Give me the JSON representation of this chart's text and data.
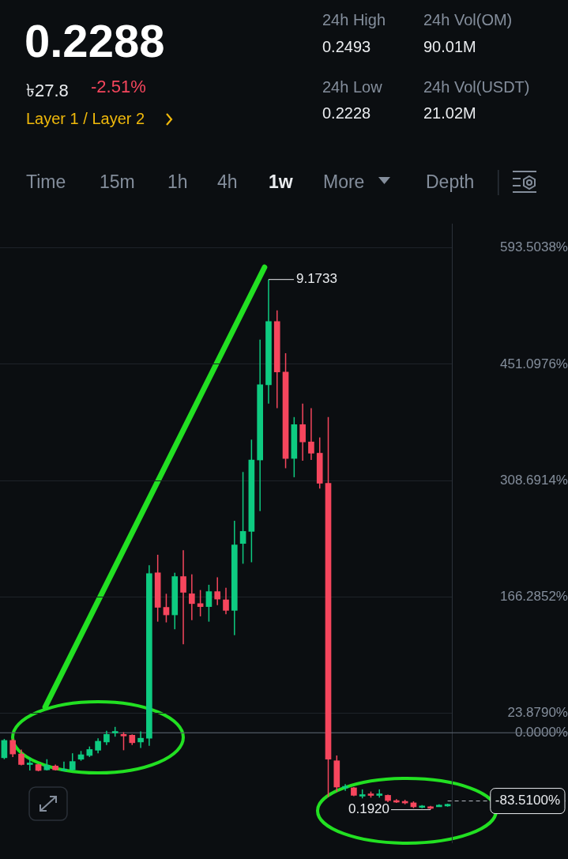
{
  "chart_data": {
    "type": "candlestick",
    "title": "0.2288",
    "annotations": [
      "৳27.8",
      "-2.51%",
      "Layer 1 / Layer 2",
      "24h High",
      "0.2493",
      "24h Low",
      "0.2228",
      "24h Vol(OM)",
      "90.01M",
      "24h Vol(USDT)",
      "21.02M",
      "Time",
      "15m",
      "1h",
      "4h",
      "1w",
      "More",
      "Depth",
      "9.1733",
      "0.1920"
    ],
    "categories": [
      null,
      null,
      null,
      null,
      null,
      null,
      null,
      null,
      null,
      null,
      null,
      null,
      null,
      null,
      null,
      null,
      null,
      null,
      null,
      null,
      null,
      null,
      null,
      null,
      null,
      null,
      null,
      null,
      null,
      null,
      null,
      null,
      null,
      null,
      null,
      null,
      null,
      null,
      null,
      null,
      null,
      null,
      null,
      null,
      null,
      null,
      null,
      null,
      null,
      null,
      null,
      null,
      null
    ],
    "ohlc": [
      [
        -30.6,
        -7.6,
        -32.4,
        -9.4
      ],
      [
        -9.4,
        -7.6,
        -29.7,
        -26.0
      ],
      [
        -26.0,
        -20.5,
        -39.8,
        -38.9
      ],
      [
        -38.9,
        -30.6,
        -46.2,
        -37.0
      ],
      [
        -38.9,
        -38.0,
        -47.2,
        -46.2
      ],
      [
        -45.4,
        -32.4,
        -46.2,
        -39.8
      ],
      [
        -40.7,
        -38.9,
        -46.2,
        -45.4
      ],
      [
        -45.4,
        -35.2,
        -46.2,
        -44.4
      ],
      [
        -45.4,
        -25.1,
        -46.2,
        -35.2
      ],
      [
        -32.4,
        -22.3,
        -34.3,
        -26.9
      ],
      [
        -27.8,
        -16.8,
        -29.7,
        -20.5
      ],
      [
        -21.4,
        -6.7,
        -25.1,
        -10.4
      ],
      [
        -11.3,
        2.5,
        -15.0,
        -2.0
      ],
      [
        -0.3,
        7.2,
        -4.8,
        1.6
      ],
      [
        -2.0,
        0.7,
        -21.4,
        -3.0
      ],
      [
        -3.0,
        -2.0,
        -15.0,
        -12.2
      ],
      [
        -11.3,
        1.6,
        -18.7,
        -6.7
      ],
      [
        -6.7,
        205.0,
        -15.9,
        194.9
      ],
      [
        195.8,
        217.9,
        136.0,
        153.5
      ],
      [
        153.5,
        170.1,
        135.1,
        144.3
      ],
      [
        144.3,
        195.8,
        126.8,
        191.2
      ],
      [
        191.2,
        223.5,
        108.4,
        171.9
      ],
      [
        170.1,
        194.0,
        137.9,
        158.1
      ],
      [
        158.1,
        174.7,
        142.5,
        154.4
      ],
      [
        154.4,
        181.1,
        136.0,
        172.8
      ],
      [
        172.8,
        190.3,
        156.3,
        163.6
      ],
      [
        162.7,
        177.4,
        145.2,
        149.8
      ],
      [
        149.8,
        259.4,
        119.5,
        229.9
      ],
      [
        231.7,
        319.2,
        206.9,
        246.5
      ],
      [
        246.5,
        358.8,
        208.7,
        333.9
      ],
      [
        333.9,
        481.2,
        271.3,
        426.0
      ],
      [
        426.0,
        554.8,
        403.0,
        503.3
      ],
      [
        503.3,
        517.1,
        397.4,
        441.6
      ],
      [
        441.6,
        464.6,
        323.8,
        335.8
      ],
      [
        335.8,
        386.4,
        312.8,
        377.2
      ],
      [
        377.2,
        403.0,
        333.0,
        356.0
      ],
      [
        356.0,
        397.4,
        333.9,
        342.2
      ],
      [
        342.2,
        361.5,
        298.9,
        305.4
      ],
      [
        305.4,
        386.4,
        -78.5,
        -32.4
      ],
      [
        -34.3,
        -27.8,
        -72.0,
        -66.5
      ],
      [
        -67.4,
        -62.8,
        -71.1,
        -65.6
      ],
      [
        -67.4,
        -66.5,
        -77.6,
        -76.6
      ],
      [
        -77.6,
        -69.3,
        -80.3,
        -75.7
      ],
      [
        -74.8,
        -72.0,
        -79.4,
        -76.6
      ],
      [
        -76.6,
        -69.3,
        -79.4,
        -74.8
      ],
      [
        -76.6,
        -75.7,
        -84.9,
        -83.0
      ],
      [
        -83.0,
        -81.2,
        -85.8,
        -84.9
      ],
      [
        -84.0,
        -82.1,
        -87.6,
        -85.8
      ],
      [
        -85.8,
        -84.0,
        -92.3,
        -90.5
      ],
      [
        -91.3,
        -88.6,
        -92.3,
        -89.5
      ],
      [
        -90.5,
        -89.5,
        -94.2,
        -91.3
      ],
      [
        -89.5,
        -87.6,
        -90.5,
        -88.6
      ],
      [
        -89.5,
        -86.8,
        -90.5,
        -87.6
      ]
    ],
    "colors": [
      "#0ecb81",
      "#f6465d",
      "#f6465d",
      "#0ecb81",
      "#f6465d",
      "#0ecb81",
      "#f6465d",
      "#0ecb81",
      "#0ecb81",
      "#0ecb81",
      "#0ecb81",
      "#0ecb81",
      "#0ecb81",
      "#0ecb81",
      "#f6465d",
      "#f6465d",
      "#0ecb81",
      "#0ecb81",
      "#f6465d",
      "#f6465d",
      "#0ecb81",
      "#f6465d",
      "#f6465d",
      "#f6465d",
      "#0ecb81",
      "#f6465d",
      "#f6465d",
      "#0ecb81",
      "#0ecb81",
      "#0ecb81",
      "#0ecb81",
      "#0ecb81",
      "#f6465d",
      "#f6465d",
      "#0ecb81",
      "#f6465d",
      "#f6465d",
      "#f6465d",
      "#f6465d",
      "#f6465d",
      "#0ecb81",
      "#f6465d",
      "#0ecb81",
      "#f6465d",
      "#0ecb81",
      "#f6465d",
      "#f6465d",
      "#f6465d",
      "#f6465d",
      "#0ecb81",
      "#f6465d",
      "#0ecb81",
      "#0ecb81"
    ],
    "ylim": [
      -135,
      623
    ],
    "yticks": [
      {
        "value": 593.5038,
        "label": "593.5038%"
      },
      {
        "value": 451.0976,
        "label": "451.0976%"
      },
      {
        "value": 308.6914,
        "label": "308.6914%"
      },
      {
        "value": 166.2852,
        "label": "166.2852%"
      },
      {
        "value": 23.879,
        "label": "23.8790%"
      },
      {
        "value": 0,
        "label": "0.0000%"
      }
    ],
    "ref_lines": [
      {
        "axis": "y",
        "value": 0,
        "color": "#5e6673",
        "line_style": "solid"
      },
      {
        "axis": "y",
        "value": -83.51,
        "label": "-83.5100%",
        "color": "#b7bdc6",
        "line_style": "dashed"
      }
    ],
    "grid": "y",
    "legend": false,
    "tick_labels": "y"
  }
}
